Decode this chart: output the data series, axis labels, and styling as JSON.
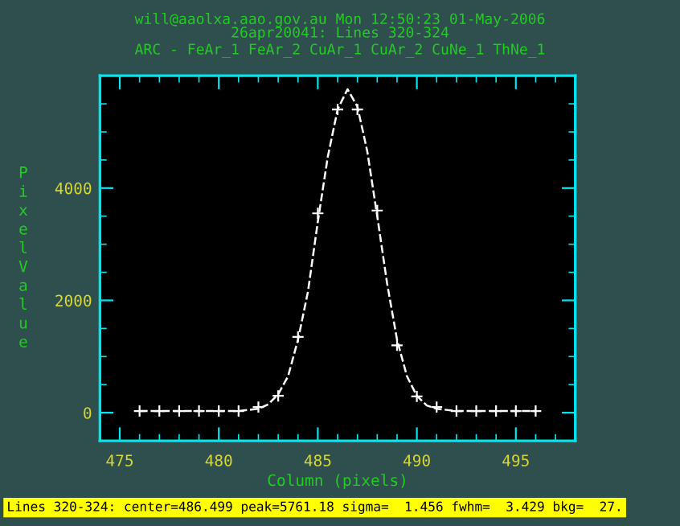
{
  "chart_data": {
    "type": "line",
    "title": "will@aaolxa.aao.gov.au Mon 12:50:23 01-May-2006",
    "subtitle": "26apr20041: Lines 320-324\nARC - FeAr_1 FeAr_2 CuAr_1 CuAr_2 CuNe_1 ThNe_1",
    "xlabel": "Column (pixels)",
    "ylabel": "Pixel Value",
    "annotations": [
      "Lines 320-324: center=486.499 peak=5761.18 sigma=  1.456 fwhm=  3.429 bkg=  27."
    ],
    "series": [
      {
        "type": "scatter",
        "color": "#ffffff",
        "marker": "cross",
        "x": [
          476,
          477,
          478,
          479,
          480,
          481,
          482,
          483,
          484,
          485,
          486,
          487,
          488,
          489,
          490,
          491,
          492,
          493,
          494,
          495,
          496
        ],
        "values": [
          30,
          30,
          30,
          30,
          30,
          30,
          100,
          300,
          1350,
          3550,
          5400,
          5400,
          3600,
          1200,
          290,
          100,
          30,
          30,
          30,
          30,
          30
        ]
      },
      {
        "color": "#ffffff",
        "line_style": "dashed",
        "marker": "none",
        "x": [
          476,
          481,
          482,
          482.5,
          483,
          483.5,
          484,
          484.5,
          485,
          485.5,
          486,
          486.5,
          487,
          487.5,
          488,
          488.5,
          489,
          489.5,
          490,
          490.5,
          491,
          492,
          496
        ],
        "values": [
          30,
          30,
          70,
          150,
          330,
          650,
          1300,
          2150,
          3400,
          4550,
          5400,
          5760,
          5450,
          4650,
          3500,
          2300,
          1300,
          650,
          300,
          130,
          70,
          30,
          30
        ]
      }
    ],
    "xlim": [
      474,
      498
    ],
    "xticks": [
      475,
      480,
      485,
      490,
      495
    ],
    "ylim": [
      -500,
      6000
    ],
    "yticks": [
      0,
      2000,
      4000
    ],
    "grid": false,
    "legend": false
  }
}
